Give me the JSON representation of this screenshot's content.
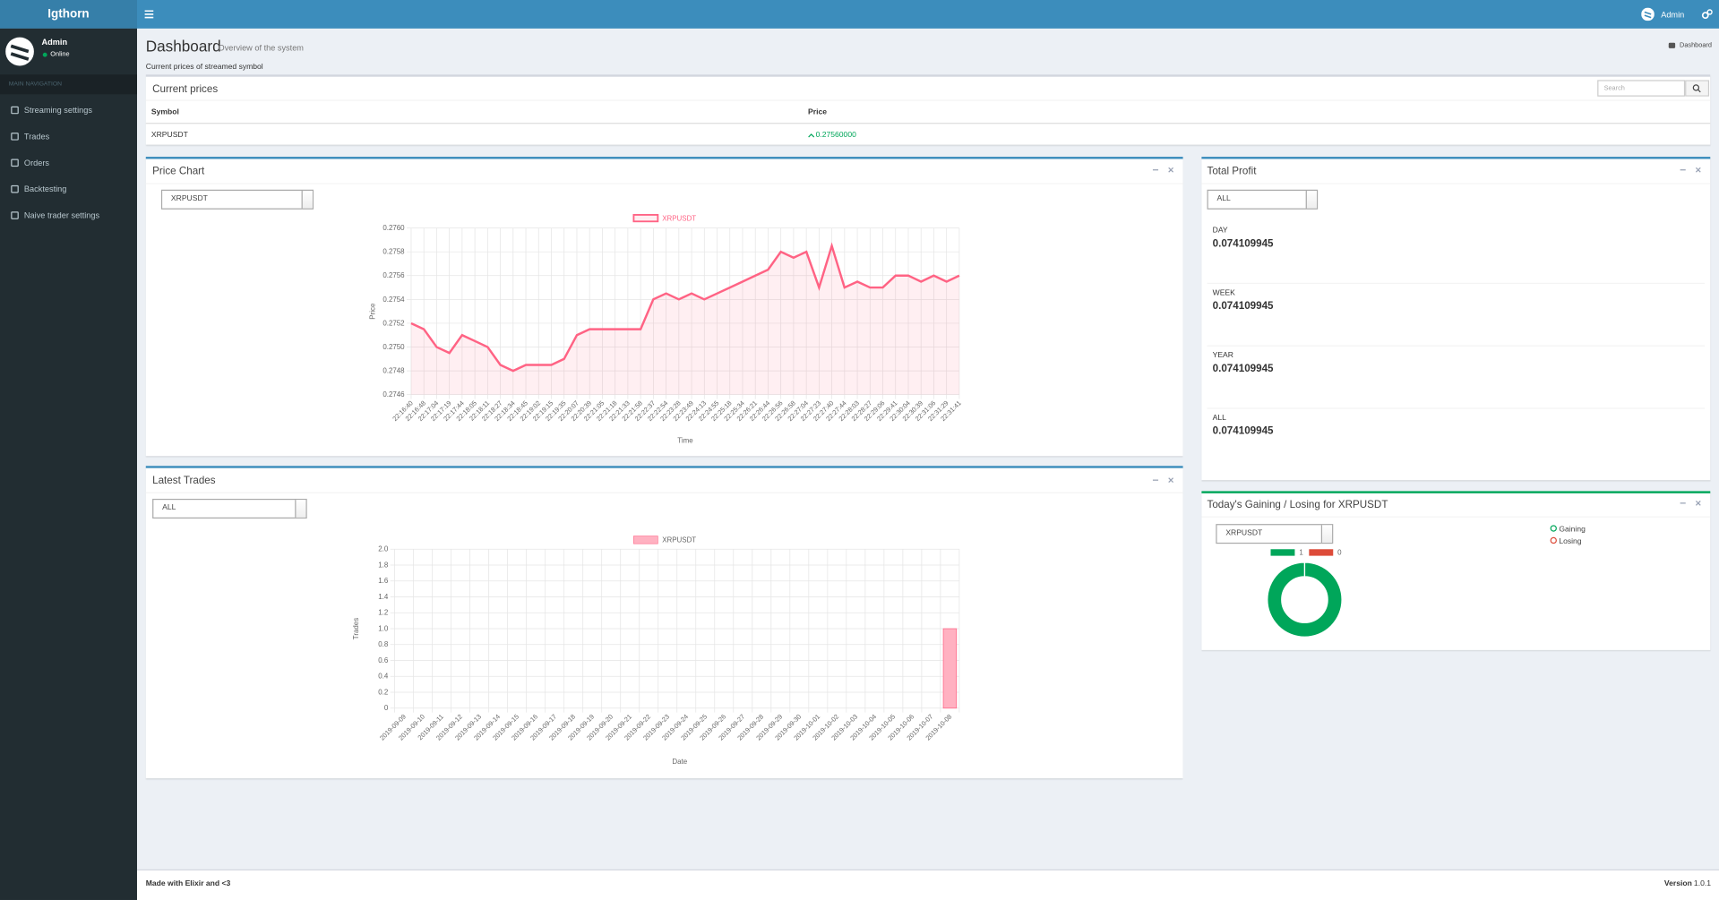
{
  "header": {
    "brand": "Igthorn",
    "user": "Admin"
  },
  "sidebar": {
    "user": "Admin",
    "status": "Online",
    "section": "MAIN NAVIGATION",
    "items": [
      "Streaming settings",
      "Trades",
      "Orders",
      "Backtesting",
      "Naive trader settings"
    ]
  },
  "page": {
    "title": "Dashboard",
    "subtitle": "Overview of the system",
    "breadcrumb": "Dashboard",
    "section_label": "Current prices of streamed symbol"
  },
  "current_prices": {
    "title": "Current prices",
    "search_placeholder": "Search",
    "columns": [
      "Symbol",
      "Price"
    ],
    "rows": [
      [
        "XRPUSDT",
        "0.27560000"
      ]
    ]
  },
  "total_profit": {
    "title": "Total Profit",
    "filter": "ALL",
    "items": [
      {
        "label": "DAY",
        "value": "0.074109945"
      },
      {
        "label": "WEEK",
        "value": "0.074109945"
      },
      {
        "label": "YEAR",
        "value": "0.074109945"
      },
      {
        "label": "ALL",
        "value": "0.074109945"
      }
    ]
  },
  "footer": {
    "left": "Made with Elixir and <3",
    "version_label": "Version",
    "version": "1.0.1"
  },
  "chart_data": [
    {
      "type": "line",
      "title": "Price Chart",
      "selector": "XRPUSDT",
      "x_label": "Time",
      "y_label": "Price",
      "categories": [
        "22:16:40",
        "22:16:48",
        "22:17:04",
        "22:17:19",
        "22:17:44",
        "22:18:05",
        "22:18:11",
        "22:18:27",
        "22:18:34",
        "22:18:45",
        "22:19:02",
        "22:19:15",
        "22:19:35",
        "22:20:07",
        "22:20:39",
        "22:21:05",
        "22:21:18",
        "22:21:33",
        "22:21:58",
        "22:22:37",
        "22:22:54",
        "22:23:28",
        "22:23:49",
        "22:24:13",
        "22:24:55",
        "22:25:18",
        "22:25:34",
        "22:26:21",
        "22:26:44",
        "22:26:56",
        "22:26:58",
        "22:27:04",
        "22:27:23",
        "22:27:40",
        "22:27:44",
        "22:28:03",
        "22:28:27",
        "22:29:06",
        "22:29:41",
        "22:30:04",
        "22:30:39",
        "22:31:06",
        "22:31:29",
        "22:31:41"
      ],
      "series": [
        {
          "name": "XRPUSDT",
          "color": "#ff6384",
          "values": [
            0.2752,
            0.27515,
            0.275,
            0.27495,
            0.2751,
            0.27505,
            0.275,
            0.27485,
            0.2748,
            0.27485,
            0.27485,
            0.27485,
            0.2749,
            0.2751,
            0.27515,
            0.27515,
            0.27515,
            0.27515,
            0.27515,
            0.2754,
            0.27545,
            0.2754,
            0.27545,
            0.2754,
            0.27545,
            0.2755,
            0.27555,
            0.2756,
            0.27565,
            0.2758,
            0.27575,
            0.2758,
            0.2755,
            0.27585,
            0.2755,
            0.27555,
            0.2755,
            0.2755,
            0.2756,
            0.2756,
            0.27555,
            0.2756,
            0.27555,
            0.2756
          ]
        }
      ],
      "ylim": [
        0.2746,
        0.276
      ],
      "yticks": [
        0.2746,
        0.2748,
        {
          "value": 0.275,
          "label": "0.2750"
        },
        0.2752,
        0.2754,
        0.2756,
        0.2758,
        {
          "value": 0.276,
          "label": "0.2760"
        }
      ],
      "grid": true
    },
    {
      "type": "bar",
      "title": "Latest Trades",
      "selector": "ALL",
      "x_label": "Date",
      "y_label": "Trades",
      "categories": [
        "2019-09-09",
        "2019-09-10",
        "2019-09-11",
        "2019-09-12",
        "2019-09-13",
        "2019-09-14",
        "2019-09-15",
        "2019-09-16",
        "2019-09-17",
        "2019-09-18",
        "2019-09-19",
        "2019-09-20",
        "2019-09-21",
        "2019-09-22",
        "2019-09-23",
        "2019-09-24",
        "2019-09-25",
        "2019-09-26",
        "2019-09-27",
        "2019-09-28",
        "2019-09-29",
        "2019-09-30",
        "2019-10-01",
        "2019-10-02",
        "2019-10-03",
        "2019-10-04",
        "2019-10-05",
        "2019-10-06",
        "2019-10-07",
        "2019-10-08"
      ],
      "series": [
        {
          "name": "XRPUSDT",
          "color": "#ffb1c1",
          "values": [
            0,
            0,
            0,
            0,
            0,
            0,
            0,
            0,
            0,
            0,
            0,
            0,
            0,
            0,
            0,
            0,
            0,
            0,
            0,
            0,
            0,
            0,
            0,
            0,
            0,
            0,
            0,
            0,
            0,
            1
          ]
        }
      ],
      "ylim": [
        0,
        2
      ],
      "yticks": [
        0,
        0.2,
        0.4,
        0.6,
        0.8,
        {
          "value": 1,
          "label": "1.0"
        },
        1.2,
        1.4,
        1.6,
        1.8,
        {
          "value": 2,
          "label": "2.0"
        }
      ],
      "grid": true
    },
    {
      "type": "doughnut",
      "title": "Today's Gaining / Losing for XRPUSDT",
      "selector": "XRPUSDT",
      "categories": [
        "Gaining",
        "Losing"
      ],
      "values": [
        1,
        0
      ],
      "colors": [
        "#00a65a",
        "#dd4b39"
      ]
    }
  ]
}
